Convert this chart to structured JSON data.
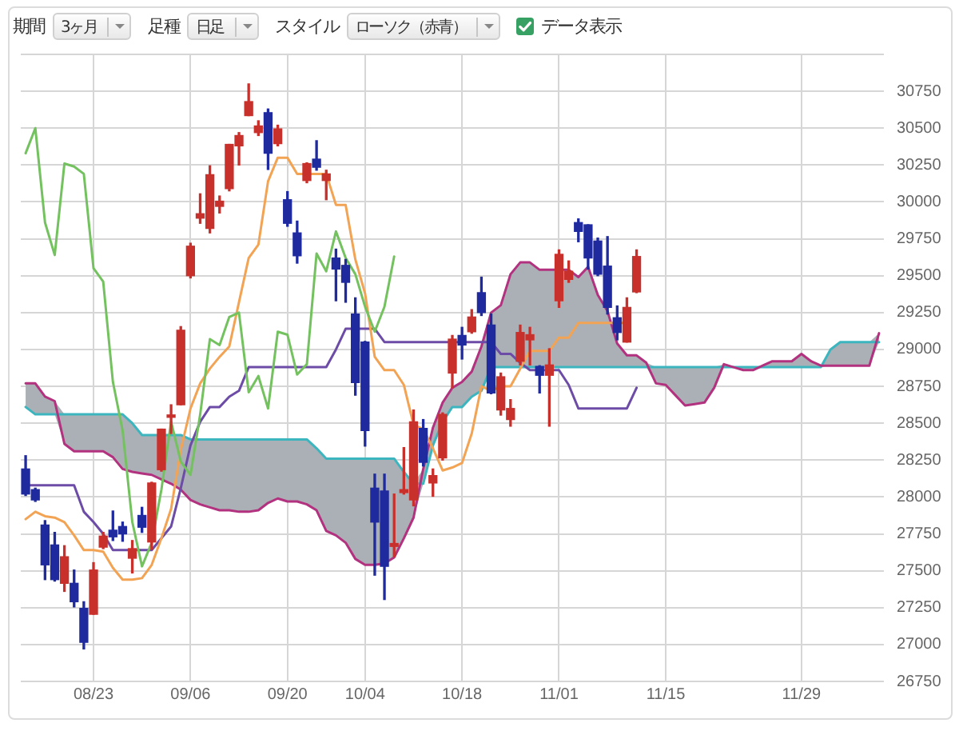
{
  "chart_data": {
    "type": "candlestick",
    "annotations": [
      "期間",
      "3ヶ月",
      "足種",
      "日足",
      "スタイル",
      "ローソク（赤青）",
      "データ表示"
    ],
    "categories": [
      null,
      null,
      null,
      null,
      null,
      null,
      null,
      "08/23",
      null,
      null,
      null,
      null,
      null,
      null,
      null,
      null,
      null,
      "09/06",
      null,
      null,
      null,
      null,
      null,
      null,
      null,
      null,
      null,
      "09/20",
      null,
      null,
      null,
      null,
      null,
      null,
      null,
      "10/04",
      null,
      null,
      null,
      null,
      null,
      null,
      null,
      null,
      null,
      "10/18",
      null,
      null,
      null,
      null,
      null,
      null,
      null,
      null,
      null,
      "11/01",
      null,
      null,
      null,
      null,
      null,
      null,
      null,
      null,
      null,
      null,
      "11/15",
      null,
      null,
      null,
      null,
      null,
      null,
      null,
      null,
      null,
      null,
      null,
      null,
      null,
      "11/29",
      null,
      null,
      null,
      null,
      null,
      null,
      null,
      null
    ],
    "ohlc": [
      [
        28190,
        28280,
        28010,
        28020
      ],
      [
        28050,
        28060,
        27970,
        27980
      ],
      [
        27810,
        27840,
        27440,
        27540
      ],
      [
        27675,
        27760,
        27430,
        27440
      ],
      [
        27415,
        27670,
        27360,
        27595
      ],
      [
        27415,
        27505,
        27255,
        27290
      ],
      [
        27245,
        27290,
        26970,
        27015
      ],
      [
        27205,
        27555,
        27205,
        27505
      ],
      [
        27660,
        27760,
        27650,
        27735
      ],
      [
        27775,
        27905,
        27705,
        27730
      ],
      [
        27800,
        27830,
        27700,
        27750
      ],
      [
        27585,
        27705,
        27485,
        27650
      ],
      [
        27875,
        27930,
        27760,
        27795
      ],
      [
        27695,
        28100,
        27645,
        28095
      ],
      [
        28185,
        28460,
        28175,
        28460
      ],
      [
        28540,
        28625,
        28430,
        28545
      ],
      [
        28625,
        29155,
        28625,
        29130
      ],
      [
        29500,
        29720,
        29485,
        29700
      ],
      [
        29890,
        30055,
        29855,
        29920
      ],
      [
        29820,
        30245,
        29790,
        30185
      ],
      [
        29970,
        30040,
        29925,
        30005
      ],
      [
        30090,
        30390,
        30075,
        30390
      ],
      [
        30380,
        30470,
        30250,
        30450
      ],
      [
        30585,
        30800,
        30585,
        30680
      ],
      [
        30470,
        30550,
        30450,
        30515
      ],
      [
        30605,
        30630,
        30220,
        30330
      ],
      [
        30395,
        30520,
        30380,
        30495
      ],
      [
        30015,
        30070,
        29835,
        29855
      ],
      [
        29790,
        29870,
        29585,
        29635
      ],
      [
        30145,
        30265,
        30130,
        30260
      ],
      [
        30290,
        30415,
        30215,
        30235
      ],
      [
        30145,
        30215,
        30015,
        30190
      ],
      [
        29620,
        29680,
        29330,
        29545
      ],
      [
        29570,
        29610,
        29320,
        29455
      ],
      [
        29240,
        29350,
        28690,
        28775
      ],
      [
        29050,
        29055,
        28345,
        28450
      ],
      [
        28060,
        28155,
        27470,
        27830
      ],
      [
        28040,
        28155,
        27305,
        27530
      ],
      [
        27665,
        28020,
        27595,
        27685
      ],
      [
        28030,
        28335,
        28020,
        28050
      ],
      [
        27980,
        28590,
        27940,
        28510
      ],
      [
        28465,
        28525,
        28210,
        28235
      ],
      [
        28095,
        28190,
        28005,
        28145
      ],
      [
        28265,
        28570,
        28250,
        28560
      ],
      [
        28840,
        29095,
        28740,
        29070
      ],
      [
        29095,
        29150,
        28935,
        29030
      ],
      [
        29120,
        29270,
        29110,
        29220
      ],
      [
        29385,
        29490,
        29230,
        29250
      ],
      [
        29165,
        29240,
        28700,
        28705
      ],
      [
        28590,
        28840,
        28555,
        28815
      ],
      [
        28525,
        28660,
        28480,
        28600
      ],
      [
        28920,
        29165,
        28895,
        29115
      ],
      [
        29065,
        29150,
        28895,
        29100
      ],
      [
        28885,
        28890,
        28705,
        28825
      ],
      [
        28825,
        29005,
        28480,
        28895
      ],
      [
        29330,
        29675,
        29285,
        29645
      ],
      [
        29475,
        29600,
        29455,
        29530
      ],
      [
        29860,
        29885,
        29730,
        29800
      ],
      [
        29845,
        29845,
        29545,
        29620
      ],
      [
        29735,
        29755,
        29500,
        29510
      ],
      [
        29565,
        29765,
        29240,
        29285
      ],
      [
        29215,
        29295,
        29065,
        29115
      ],
      [
        29050,
        29350,
        29050,
        29285
      ],
      [
        29390,
        29675,
        29385,
        29630
      ],
      null,
      null,
      null,
      null,
      null,
      null,
      null,
      null,
      null,
      null,
      null,
      null,
      null,
      null,
      null,
      null,
      null,
      null,
      null,
      null,
      null,
      null,
      null,
      null,
      null
    ],
    "colors": [
      "#1e2a9e",
      "#1e2a9e",
      "#1e2a9e",
      "#1e2a9e",
      "#c8302c",
      "#1e2a9e",
      "#1e2a9e",
      "#c8302c",
      "#c8302c",
      "#1e2a9e",
      "#1e2a9e",
      "#c8302c",
      "#1e2a9e",
      "#c8302c",
      "#c8302c",
      "#c8302c",
      "#c8302c",
      "#c8302c",
      "#c8302c",
      "#c8302c",
      "#c8302c",
      "#c8302c",
      "#c8302c",
      "#c8302c",
      "#c8302c",
      "#1e2a9e",
      "#c8302c",
      "#1e2a9e",
      "#1e2a9e",
      "#c8302c",
      "#1e2a9e",
      "#c8302c",
      "#1e2a9e",
      "#1e2a9e",
      "#1e2a9e",
      "#1e2a9e",
      "#1e2a9e",
      "#1e2a9e",
      "#c8302c",
      "#c8302c",
      "#c8302c",
      "#1e2a9e",
      "#c8302c",
      "#c8302c",
      "#c8302c",
      "#1e2a9e",
      "#c8302c",
      "#1e2a9e",
      "#1e2a9e",
      "#c8302c",
      "#c8302c",
      "#c8302c",
      "#c8302c",
      "#1e2a9e",
      "#c8302c",
      "#c8302c",
      "#c8302c",
      "#1e2a9e",
      "#1e2a9e",
      "#1e2a9e",
      "#1e2a9e",
      "#1e2a9e",
      "#c8302c",
      "#c8302c",
      null,
      null,
      null,
      null,
      null,
      null,
      null,
      null,
      null,
      null,
      null,
      null,
      null,
      null,
      null,
      null,
      null,
      null,
      null,
      null,
      null,
      null,
      null,
      null,
      null
    ],
    "series": [
      {
        "type": "line",
        "color": "#3db5bf",
        "values": [
          28610,
          28560,
          28560,
          28560,
          28560,
          28560,
          28560,
          28560,
          28560,
          28560,
          28560,
          28500,
          28420,
          28420,
          28420,
          28420,
          28420,
          28390,
          28390,
          28390,
          28390,
          28390,
          28390,
          28390,
          28390,
          28390,
          28390,
          28390,
          28390,
          28390,
          28330,
          28260,
          28260,
          28260,
          28260,
          28260,
          28260,
          28260,
          28260,
          28170,
          28090,
          28090,
          28350,
          28510,
          28610,
          28610,
          28680,
          28720,
          28880,
          28880,
          28880,
          28880,
          28880,
          28880,
          28880,
          28880,
          28880,
          28880,
          28880,
          28880,
          28880,
          28880,
          28880,
          28880,
          28880,
          28880,
          28880,
          28880,
          28880,
          28880,
          28880,
          28880,
          28880,
          28880,
          28880,
          28880,
          28880,
          28880,
          28880,
          28880,
          28880,
          28880,
          28880,
          29000,
          29050,
          29050,
          29050,
          29050,
          29050
        ]
      },
      {
        "type": "line",
        "color": "#b2327f",
        "values": [
          28770,
          28770,
          28680,
          28650,
          28360,
          28310,
          28310,
          28310,
          28310,
          28270,
          28190,
          28170,
          28160,
          28150,
          28120,
          28090,
          28050,
          27980,
          27950,
          27930,
          27910,
          27910,
          27900,
          27900,
          27910,
          27960,
          27990,
          27970,
          27970,
          27950,
          27910,
          27770,
          27740,
          27690,
          27580,
          27540,
          27540,
          27550,
          27590,
          27720,
          27860,
          28190,
          28470,
          28640,
          28740,
          28780,
          28850,
          29020,
          29250,
          29300,
          29510,
          29590,
          29590,
          29540,
          29540,
          29540,
          29540,
          29490,
          29560,
          29370,
          29260,
          29040,
          28960,
          28960,
          28910,
          28770,
          28760,
          28690,
          28620,
          28630,
          28640,
          28740,
          28900,
          28880,
          28860,
          28860,
          28890,
          28920,
          28920,
          28920,
          28970,
          28920,
          28890,
          28890,
          28890,
          28890,
          28890,
          28890,
          29110
        ],
        "lower": [
          28610,
          28560,
          28560,
          28560,
          28360,
          28310,
          28310,
          28310,
          28310,
          28270,
          28190,
          28170,
          28160,
          28150,
          28120,
          28090,
          28050,
          27980,
          27950,
          27930,
          27910,
          27910,
          27900,
          27900,
          27910,
          27960,
          27990,
          27970,
          27970,
          27950,
          27910,
          27770,
          27740,
          27690,
          27580,
          27540,
          27540,
          27550,
          27590,
          27720,
          27860,
          28090,
          28350,
          28510,
          28610,
          28610,
          28680,
          28720,
          28880,
          28880,
          28880,
          28880,
          28880,
          28880,
          28880,
          28880,
          28880,
          28880,
          28880,
          28880,
          28880,
          28880,
          28880,
          28880,
          28880,
          28770,
          28760,
          28690,
          28620,
          28630,
          28640,
          28740,
          28880,
          28880,
          28860,
          28860,
          28880,
          28880,
          28880,
          28880,
          28880,
          28880,
          28880,
          28890,
          28890,
          28890,
          28890,
          28890,
          29050
        ],
        "upper": [
          28770,
          28770,
          28680,
          28650,
          28560,
          28560,
          28560,
          28560,
          28560,
          28560,
          28560,
          28500,
          28420,
          28420,
          28420,
          28420,
          28420,
          28390,
          28390,
          28390,
          28390,
          28390,
          28390,
          28390,
          28390,
          28390,
          28390,
          28390,
          28390,
          28390,
          28330,
          28260,
          28260,
          28260,
          28260,
          28260,
          28260,
          28260,
          28260,
          28170,
          28090,
          28190,
          28470,
          28640,
          28740,
          28780,
          28850,
          29020,
          29250,
          29300,
          29510,
          29590,
          29590,
          29540,
          29540,
          29540,
          29540,
          29490,
          29560,
          29370,
          29260,
          29040,
          28960,
          28960,
          28910,
          28880,
          28880,
          28880,
          28880,
          28880,
          28880,
          28880,
          28900,
          28880,
          28880,
          28880,
          28890,
          28920,
          28920,
          28920,
          28970,
          28920,
          28890,
          29000,
          29050,
          29050,
          29050,
          29050,
          29110
        ]
      },
      {
        "type": "line",
        "color": "#6c4ca6",
        "values": [
          28080,
          28080,
          28080,
          28080,
          28080,
          28080,
          27900,
          27830,
          27750,
          27640,
          27640,
          27640,
          27640,
          27640,
          27720,
          27800,
          28060,
          28350,
          28510,
          28610,
          28610,
          28680,
          28720,
          28880,
          28880,
          28880,
          28880,
          28880,
          28880,
          28880,
          28880,
          28880,
          29000,
          29140,
          29140,
          29140,
          29140,
          29050,
          29050,
          29050,
          29050,
          29050,
          29050,
          29050,
          29050,
          29050,
          29050,
          29050,
          29050,
          28970,
          28970,
          28910,
          28860,
          28860,
          28860,
          28860,
          28760,
          28600,
          28600,
          28600,
          28600,
          28600,
          28600,
          28740,
          null,
          null,
          null,
          null,
          null,
          null,
          null,
          null,
          null,
          null,
          null,
          null,
          null,
          null,
          null,
          null,
          null,
          null,
          null,
          null,
          null,
          null,
          null,
          null,
          null
        ]
      },
      {
        "type": "line",
        "color": "#f2a353",
        "values": [
          27850,
          27900,
          27870,
          27860,
          27830,
          27740,
          27640,
          27640,
          27630,
          27520,
          27440,
          27440,
          27450,
          27540,
          27720,
          27920,
          28320,
          28600,
          28770,
          28870,
          28950,
          29020,
          29320,
          29620,
          29710,
          30140,
          30300,
          30300,
          30190,
          30190,
          30190,
          30190,
          29980,
          29980,
          29610,
          29380,
          28950,
          28860,
          28860,
          28760,
          28490,
          28460,
          28330,
          28180,
          28200,
          28230,
          28430,
          28750,
          28720,
          28750,
          28750,
          28870,
          28990,
          28990,
          28990,
          29080,
          29080,
          29180,
          29180,
          29180,
          29180,
          29180,
          29180,
          null,
          null,
          null,
          null,
          null,
          null,
          null,
          null,
          null,
          null,
          null,
          null,
          null,
          null,
          null,
          null,
          null,
          null,
          null,
          null,
          null,
          null,
          null,
          null,
          null,
          null
        ]
      },
      {
        "type": "line",
        "color": "#74c25f",
        "values": [
          30330,
          30500,
          29860,
          29640,
          30260,
          30240,
          30190,
          29550,
          29460,
          28780,
          28450,
          27830,
          27530,
          27690,
          28050,
          28510,
          28240,
          28150,
          28560,
          29070,
          29030,
          29220,
          29250,
          28710,
          28820,
          28600,
          29120,
          29100,
          28830,
          28900,
          29650,
          29530,
          29800,
          29620,
          29510,
          29290,
          29120,
          29290,
          29630,
          null,
          null,
          null,
          null,
          null,
          null,
          null,
          null,
          null,
          null,
          null,
          null,
          null,
          null,
          null,
          null,
          null,
          null,
          null,
          null,
          null,
          null,
          null,
          null,
          null,
          null,
          null,
          null,
          null,
          null,
          null,
          null,
          null,
          null,
          null,
          null,
          null,
          null,
          null,
          null,
          null,
          null,
          null,
          null,
          null,
          null,
          null,
          null,
          null,
          null
        ]
      }
    ],
    "ylim": [
      26750,
      31000
    ],
    "yticks": [
      26750,
      27000,
      27250,
      27500,
      27750,
      28000,
      28250,
      28500,
      28750,
      29000,
      29250,
      29500,
      29750,
      30000,
      30250,
      30500,
      30750,
      {
        "value": 31000,
        "label": null
      }
    ],
    "grid": true
  }
}
